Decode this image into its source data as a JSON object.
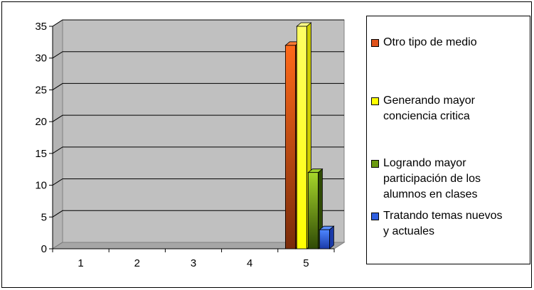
{
  "chart_data": {
    "type": "bar",
    "title": "",
    "xlabel": "",
    "ylabel": "",
    "categories": [
      "1",
      "2",
      "3",
      "4",
      "5"
    ],
    "ylim": [
      0,
      35
    ],
    "yticks": [
      "0",
      "5",
      "10",
      "15",
      "20",
      "25",
      "30",
      "35"
    ],
    "grid": true,
    "legend_position": "right",
    "series": [
      {
        "name": "Otro tipo de medio",
        "values": [
          0,
          0,
          0,
          0,
          32
        ],
        "color": "#e0531b"
      },
      {
        "name": "Generando mayor\nconciencia critica",
        "values": [
          0,
          0,
          0,
          0,
          35
        ],
        "color": "#ffff00"
      },
      {
        "name": "Logrando mayor\nparticipación de los\nalumnos en clases",
        "values": [
          0,
          0,
          0,
          0,
          12
        ],
        "color": "#6b9a10"
      },
      {
        "name": "Tratando temas nuevos\ny actuales",
        "values": [
          0,
          0,
          0,
          0,
          3
        ],
        "color": "#2f5fe0"
      }
    ],
    "plot_colors": {
      "wall": "#c0c0c0",
      "floor": "#a6a6a6",
      "grid": "#000000"
    }
  }
}
